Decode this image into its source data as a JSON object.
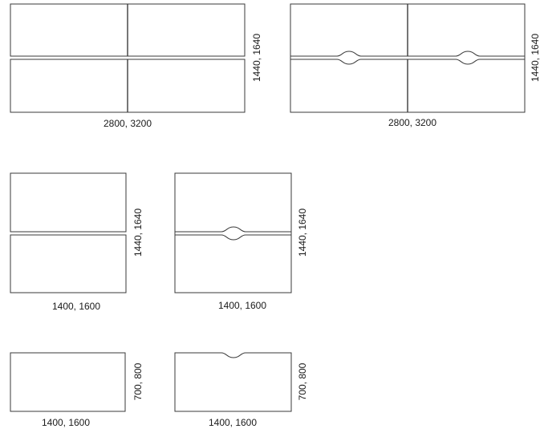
{
  "configurations": [
    {
      "id": "row1-left",
      "width_label": "2800, 3200",
      "height_label": "1440, 1640",
      "rows": 2,
      "cols": 2,
      "notch": false
    },
    {
      "id": "row1-right",
      "width_label": "2800, 3200",
      "height_label": "1440, 1640",
      "rows": 2,
      "cols": 2,
      "notch": true
    },
    {
      "id": "row2-left",
      "width_label": "1400, 1600",
      "height_label": "1440, 1640",
      "rows": 2,
      "cols": 1,
      "notch": false
    },
    {
      "id": "row2-right",
      "width_label": "1400, 1600",
      "height_label": "1440, 1640",
      "rows": 2,
      "cols": 1,
      "notch": true
    },
    {
      "id": "row3-left",
      "width_label": "1400, 1600",
      "height_label": "700, 800",
      "rows": 1,
      "cols": 1,
      "notch": false
    },
    {
      "id": "row3-right",
      "width_label": "1400, 1600",
      "height_label": "700, 800",
      "rows": 1,
      "cols": 1,
      "notch": true
    }
  ]
}
